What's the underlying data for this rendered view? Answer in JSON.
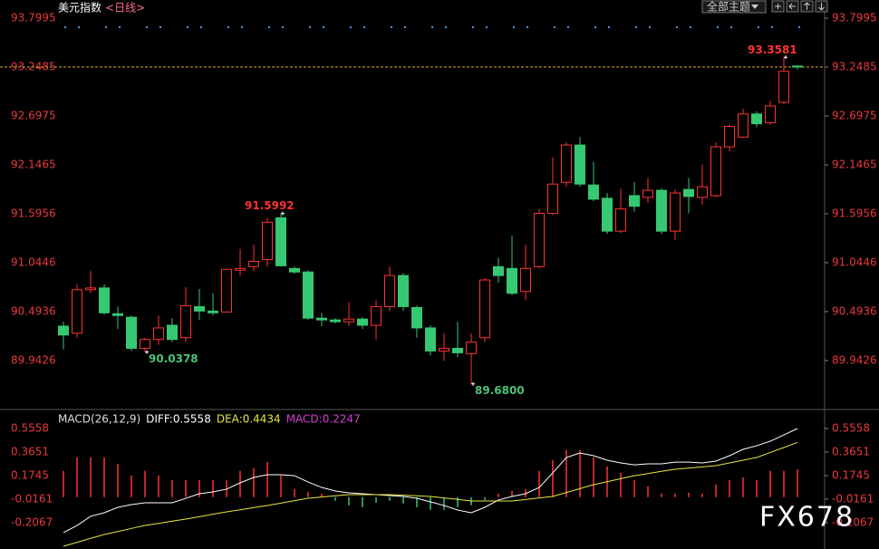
{
  "toolbar": {
    "theme_button": "全部主题"
  },
  "watermark": "FX678",
  "chart_data": [
    {
      "type": "candlestick",
      "title": "美元指数",
      "period": "<日线>",
      "open": [
        90.33,
        90.25,
        90.74,
        90.76,
        90.47,
        90.43,
        90.08,
        90.18,
        90.34,
        90.2,
        90.55,
        90.5,
        90.49,
        90.96,
        91.0,
        91.08,
        91.55,
        90.98,
        90.94,
        90.42,
        90.4,
        90.38,
        90.41,
        90.34,
        90.55,
        90.9,
        90.54,
        90.31,
        90.05,
        90.08,
        90.02,
        90.2,
        91.0,
        90.98,
        90.72,
        91.0,
        91.6,
        91.95,
        92.37,
        91.92,
        91.77,
        91.4,
        91.8,
        91.78,
        91.86,
        91.4,
        91.87,
        91.78,
        91.8,
        92.35,
        92.46,
        92.72,
        92.62,
        92.85,
        93.26
      ],
      "high": [
        90.38,
        90.8,
        90.95,
        90.8,
        90.55,
        90.45,
        90.2,
        90.45,
        90.42,
        90.77,
        90.75,
        90.7,
        90.98,
        91.2,
        91.25,
        91.55,
        91.5992,
        91.0,
        90.96,
        90.48,
        90.42,
        90.6,
        90.43,
        90.62,
        91.0,
        90.93,
        90.56,
        90.34,
        90.25,
        90.38,
        90.25,
        90.87,
        91.1,
        91.35,
        91.25,
        91.65,
        92.23,
        92.4,
        92.46,
        92.18,
        91.83,
        91.88,
        91.95,
        92.0,
        91.88,
        91.87,
        92.0,
        92.15,
        92.4,
        92.6,
        92.78,
        92.75,
        92.87,
        93.3581,
        93.27
      ],
      "low": [
        90.07,
        90.2,
        90.7,
        90.46,
        90.3,
        90.05,
        90.0378,
        90.12,
        90.15,
        90.15,
        90.4,
        90.45,
        90.48,
        90.9,
        90.95,
        91.0,
        91.0,
        90.92,
        90.4,
        90.33,
        90.36,
        90.33,
        90.3,
        90.18,
        90.5,
        90.5,
        90.2,
        90.0,
        89.94,
        89.98,
        89.68,
        90.15,
        90.82,
        90.68,
        90.62,
        90.98,
        91.58,
        91.9,
        91.9,
        91.74,
        91.37,
        91.38,
        91.62,
        91.72,
        91.37,
        91.3,
        91.6,
        91.7,
        91.78,
        92.3,
        92.45,
        92.57,
        92.6,
        92.83,
        93.22
      ],
      "close": [
        90.23,
        90.74,
        90.76,
        90.48,
        90.45,
        90.08,
        90.18,
        90.31,
        90.18,
        90.56,
        90.5,
        90.48,
        90.97,
        90.98,
        91.06,
        91.5,
        91.01,
        90.94,
        90.42,
        90.4,
        90.38,
        90.41,
        90.34,
        90.55,
        90.9,
        90.55,
        90.31,
        90.05,
        90.08,
        90.03,
        90.15,
        90.85,
        90.9,
        90.7,
        90.98,
        91.6,
        91.93,
        92.37,
        91.93,
        91.76,
        91.4,
        91.65,
        91.68,
        91.86,
        91.4,
        91.83,
        91.79,
        91.9,
        92.35,
        92.58,
        92.72,
        92.61,
        92.81,
        93.2,
        93.2485
      ],
      "up_color": "#ff3232",
      "down_color": "#36c872",
      "ylim": [
        89.4116,
        94.0036
      ],
      "yticks": [
        93.7995,
        93.2485,
        92.6975,
        92.1465,
        91.5956,
        91.0446,
        90.4936,
        89.9426
      ],
      "last_price": 93.2485,
      "last_price_color": "#d9a441",
      "annotations": [
        {
          "value": 91.5992
        },
        {
          "value": 90.0378
        },
        {
          "value": 89.68,
          "label": "89.6800"
        },
        {
          "value": 93.3581
        }
      ]
    },
    {
      "type": "macd",
      "title": "MACD(26,12,9)",
      "ylim": [
        -0.4193,
        0.6878
      ],
      "yticks": [
        0.5558,
        0.3651,
        0.1745,
        -0.0161,
        -0.2067
      ],
      "series": [
        {
          "label": "DIFF:0.5558",
          "color": "#ffffff",
          "values": [
            -0.287,
            -0.229,
            -0.155,
            -0.126,
            -0.082,
            -0.06,
            -0.045,
            -0.045,
            -0.045,
            -0.009,
            0.028,
            0.043,
            0.065,
            0.116,
            0.16,
            0.182,
            0.182,
            0.174,
            0.123,
            0.079,
            0.05,
            0.035,
            0.028,
            0.021,
            0.013,
            0.006,
            -0.009,
            -0.038,
            -0.067,
            -0.104,
            -0.126,
            -0.082,
            -0.023,
            0.006,
            0.028,
            0.079,
            0.196,
            0.321,
            0.358,
            0.336,
            0.299,
            0.277,
            0.262,
            0.27,
            0.27,
            0.284,
            0.284,
            0.277,
            0.292,
            0.336,
            0.387,
            0.416,
            0.453,
            0.504,
            0.5558
          ]
        },
        {
          "label": "DEA:0.4434",
          "color": "#e6e645",
          "values": [
            -0.397,
            -0.365,
            -0.333,
            -0.302,
            -0.278,
            -0.253,
            -0.229,
            -0.212,
            -0.194,
            -0.177,
            -0.158,
            -0.138,
            -0.119,
            -0.102,
            -0.084,
            -0.067,
            -0.048,
            -0.028,
            -0.009,
            0.001,
            0.011,
            0.021,
            0.021,
            0.021,
            0.021,
            0.016,
            0.011,
            0.006,
            -0.006,
            -0.018,
            -0.031,
            -0.031,
            -0.031,
            -0.031,
            -0.019,
            -0.006,
            0.006,
            0.038,
            0.069,
            0.101,
            0.125,
            0.15,
            0.174,
            0.191,
            0.209,
            0.226,
            0.236,
            0.245,
            0.255,
            0.277,
            0.299,
            0.321,
            0.362,
            0.402,
            0.4434
          ]
        }
      ],
      "histogram": {
        "label": "MACD:0.2247",
        "color": "#d040d0",
        "up_color": "#ff3232",
        "down_color": "#36c872",
        "values": [
          0.213,
          0.323,
          0.323,
          0.323,
          0.271,
          0.176,
          0.213,
          0.176,
          0.139,
          0.139,
          0.139,
          0.139,
          0.139,
          0.213,
          0.235,
          0.286,
          0.176,
          0.066,
          0.044,
          0.029,
          -0.029,
          -0.066,
          -0.081,
          -0.044,
          -0.029,
          -0.051,
          -0.081,
          -0.103,
          -0.103,
          -0.081,
          -0.066,
          -0.022,
          0.029,
          0.051,
          0.066,
          0.213,
          0.301,
          0.381,
          0.381,
          0.323,
          0.249,
          0.198,
          0.139,
          0.088,
          0.029,
          0.029,
          0.037,
          0.029,
          0.103,
          0.139,
          0.161,
          0.139,
          0.213,
          0.213,
          0.2247
        ]
      }
    }
  ]
}
